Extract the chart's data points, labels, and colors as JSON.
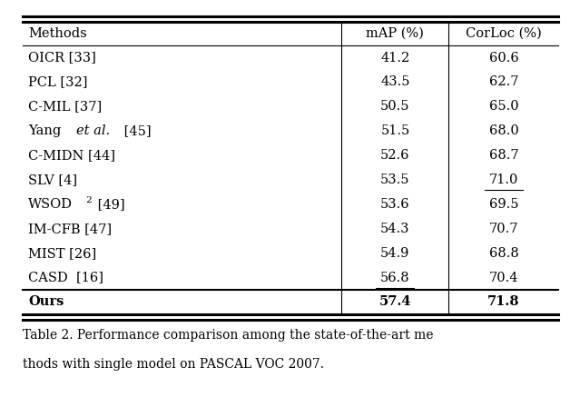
{
  "caption_line1": "Table 2. Performance comparison among the state-of-the-art me",
  "caption_line2": "thods with single model on PASCAL VOC 2007.",
  "col_headers": [
    "Methods",
    "mAP (%)",
    "CorLoc (%)"
  ],
  "rows": [
    {
      "method": "OICR [33]",
      "map": "41.2",
      "corloc": "60.6",
      "map_ul": false,
      "corloc_ul": false,
      "bold": false,
      "wsod": false,
      "yang": false
    },
    {
      "method": "PCL [32]",
      "map": "43.5",
      "corloc": "62.7",
      "map_ul": false,
      "corloc_ul": false,
      "bold": false,
      "wsod": false,
      "yang": false
    },
    {
      "method": "C-MIL [37]",
      "map": "50.5",
      "corloc": "65.0",
      "map_ul": false,
      "corloc_ul": false,
      "bold": false,
      "wsod": false,
      "yang": false
    },
    {
      "method": "Yang et al. [45]",
      "map": "51.5",
      "corloc": "68.0",
      "map_ul": false,
      "corloc_ul": false,
      "bold": false,
      "wsod": false,
      "yang": true
    },
    {
      "method": "C-MIDN [44]",
      "map": "52.6",
      "corloc": "68.7",
      "map_ul": false,
      "corloc_ul": false,
      "bold": false,
      "wsod": false,
      "yang": false
    },
    {
      "method": "SLV [4]",
      "map": "53.5",
      "corloc": "71.0",
      "map_ul": false,
      "corloc_ul": true,
      "bold": false,
      "wsod": false,
      "yang": false
    },
    {
      "method": "WSOD2 [49]",
      "map": "53.6",
      "corloc": "69.5",
      "map_ul": false,
      "corloc_ul": false,
      "bold": false,
      "wsod": true,
      "yang": false
    },
    {
      "method": "IM-CFB [47]",
      "map": "54.3",
      "corloc": "70.7",
      "map_ul": false,
      "corloc_ul": false,
      "bold": false,
      "wsod": false,
      "yang": false
    },
    {
      "method": "MIST [26]",
      "map": "54.9",
      "corloc": "68.8",
      "map_ul": false,
      "corloc_ul": false,
      "bold": false,
      "wsod": false,
      "yang": false
    },
    {
      "method": "CASD  [16]",
      "map": "56.8",
      "corloc": "70.4",
      "map_ul": true,
      "corloc_ul": false,
      "bold": false,
      "wsod": false,
      "yang": false
    },
    {
      "method": "Ours",
      "map": "57.4",
      "corloc": "71.8",
      "map_ul": false,
      "corloc_ul": false,
      "bold": true,
      "wsod": false,
      "yang": false
    }
  ],
  "figsize": [
    6.28,
    4.48
  ],
  "dpi": 100,
  "font_size": 10.5,
  "caption_font_size": 10.0
}
